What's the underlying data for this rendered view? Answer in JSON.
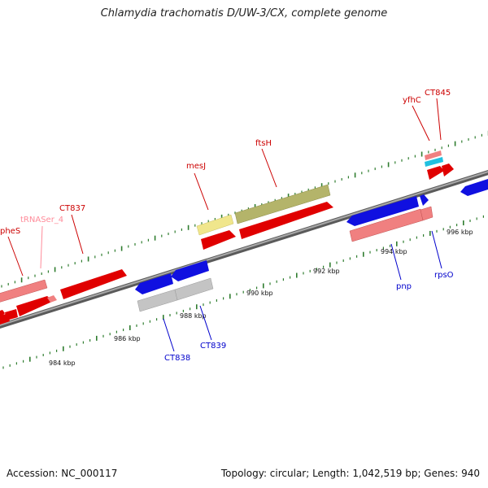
{
  "title": "Chlamydia trachomatis D/UW-3/CX, complete genome",
  "footer": {
    "accession": "Accession: NC_000117",
    "summary": "Topology: circular; Length: 1,042,519 bp; Genes: 940"
  },
  "colors": {
    "backbone": "#8c8c8c",
    "tick": "#2f7d2f",
    "red": "#f00000",
    "pink": "#f08080",
    "blue": "#1010e0",
    "grey": "#c4c4c4",
    "olive": "#b4b46a",
    "yellow": "#f0e68c",
    "cyan": "#20c0e0",
    "label_red": "#cc0000",
    "label_blue": "#0000cc",
    "label_pink": "#ff8c9a"
  },
  "ruler_labels": [
    "984 kbp",
    "986 kbp",
    "988 kbp",
    "990 kbp",
    "992 kbp",
    "994 kbp",
    "996 kbp"
  ],
  "gene_labels": [
    {
      "text": "pheS",
      "color": "label_red"
    },
    {
      "text": "tRNASer_4",
      "color": "label_pink"
    },
    {
      "text": "CT837",
      "color": "label_red"
    },
    {
      "text": "mesJ",
      "color": "label_red"
    },
    {
      "text": "ftsH",
      "color": "label_red"
    },
    {
      "text": "yfhC",
      "color": "label_red"
    },
    {
      "text": "CT845",
      "color": "label_red"
    },
    {
      "text": "CT838",
      "color": "label_blue"
    },
    {
      "text": "CT839",
      "color": "label_blue"
    },
    {
      "text": "pnp",
      "color": "label_blue"
    },
    {
      "text": "rpsO",
      "color": "label_blue"
    }
  ]
}
